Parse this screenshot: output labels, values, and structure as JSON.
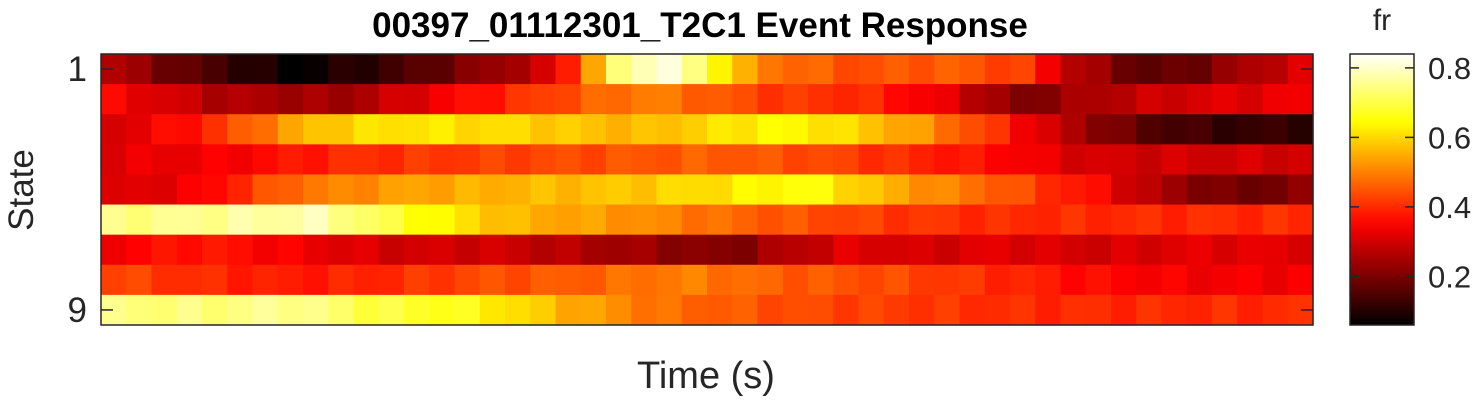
{
  "chart_data": {
    "type": "heatmap",
    "title": "00397_01112301_T2C1 Event Response",
    "xlabel": "Time (s)",
    "ylabel": "State",
    "y_tick_labels": [
      "1",
      "9"
    ],
    "x_tick_labels": [],
    "colorbar": {
      "label": "fr",
      "colormap": "hot",
      "clim": [
        0.06,
        0.84
      ],
      "ticks": [
        0.2,
        0.4,
        0.6,
        0.8
      ],
      "tick_labels": [
        "0.2",
        "0.4",
        "0.6",
        "0.8"
      ]
    },
    "rows": 9,
    "columns": 48,
    "row_keyframes": [
      [
        [
          0,
          0.28
        ],
        [
          0.06,
          0.18
        ],
        [
          0.16,
          0.06
        ],
        [
          0.25,
          0.14
        ],
        [
          0.33,
          0.24
        ],
        [
          0.37,
          0.3
        ],
        [
          0.4,
          0.48
        ],
        [
          0.42,
          0.7
        ],
        [
          0.46,
          0.84
        ],
        [
          0.5,
          0.7
        ],
        [
          0.54,
          0.5
        ],
        [
          0.62,
          0.44
        ],
        [
          0.7,
          0.46
        ],
        [
          0.76,
          0.42
        ],
        [
          0.8,
          0.28
        ],
        [
          0.86,
          0.16
        ],
        [
          0.9,
          0.18
        ],
        [
          0.95,
          0.26
        ],
        [
          1,
          0.32
        ]
      ],
      [
        [
          0,
          0.36
        ],
        [
          0.1,
          0.26
        ],
        [
          0.2,
          0.24
        ],
        [
          0.28,
          0.34
        ],
        [
          0.36,
          0.42
        ],
        [
          0.45,
          0.5
        ],
        [
          0.55,
          0.42
        ],
        [
          0.63,
          0.4
        ],
        [
          0.7,
          0.32
        ],
        [
          0.76,
          0.2
        ],
        [
          0.82,
          0.26
        ],
        [
          0.88,
          0.3
        ],
        [
          0.95,
          0.32
        ],
        [
          1,
          0.34
        ]
      ],
      [
        [
          0,
          0.3
        ],
        [
          0.08,
          0.38
        ],
        [
          0.18,
          0.58
        ],
        [
          0.25,
          0.62
        ],
        [
          0.34,
          0.6
        ],
        [
          0.44,
          0.56
        ],
        [
          0.5,
          0.6
        ],
        [
          0.55,
          0.64
        ],
        [
          0.6,
          0.62
        ],
        [
          0.68,
          0.52
        ],
        [
          0.74,
          0.4
        ],
        [
          0.8,
          0.26
        ],
        [
          0.86,
          0.16
        ],
        [
          0.92,
          0.12
        ],
        [
          1,
          0.12
        ]
      ],
      [
        [
          0,
          0.32
        ],
        [
          0.1,
          0.34
        ],
        [
          0.2,
          0.4
        ],
        [
          0.3,
          0.42
        ],
        [
          0.4,
          0.44
        ],
        [
          0.5,
          0.46
        ],
        [
          0.58,
          0.44
        ],
        [
          0.66,
          0.4
        ],
        [
          0.74,
          0.36
        ],
        [
          0.82,
          0.3
        ],
        [
          0.9,
          0.3
        ],
        [
          1,
          0.3
        ]
      ],
      [
        [
          0,
          0.3
        ],
        [
          0.08,
          0.34
        ],
        [
          0.16,
          0.48
        ],
        [
          0.26,
          0.54
        ],
        [
          0.34,
          0.56
        ],
        [
          0.44,
          0.58
        ],
        [
          0.52,
          0.62
        ],
        [
          0.58,
          0.66
        ],
        [
          0.66,
          0.54
        ],
        [
          0.74,
          0.46
        ],
        [
          0.82,
          0.36
        ],
        [
          0.88,
          0.24
        ],
        [
          0.94,
          0.18
        ],
        [
          1,
          0.22
        ]
      ],
      [
        [
          0,
          0.74
        ],
        [
          0.1,
          0.76
        ],
        [
          0.18,
          0.78
        ],
        [
          0.26,
          0.66
        ],
        [
          0.34,
          0.56
        ],
        [
          0.44,
          0.52
        ],
        [
          0.54,
          0.46
        ],
        [
          0.64,
          0.42
        ],
        [
          0.74,
          0.4
        ],
        [
          0.84,
          0.4
        ],
        [
          0.94,
          0.4
        ],
        [
          1,
          0.4
        ]
      ],
      [
        [
          0,
          0.34
        ],
        [
          0.08,
          0.38
        ],
        [
          0.16,
          0.34
        ],
        [
          0.24,
          0.3
        ],
        [
          0.32,
          0.3
        ],
        [
          0.4,
          0.26
        ],
        [
          0.44,
          0.24
        ],
        [
          0.48,
          0.22
        ],
        [
          0.52,
          0.2
        ],
        [
          0.56,
          0.26
        ],
        [
          0.62,
          0.32
        ],
        [
          0.68,
          0.3
        ],
        [
          0.74,
          0.32
        ],
        [
          0.82,
          0.3
        ],
        [
          0.9,
          0.32
        ],
        [
          1,
          0.32
        ]
      ],
      [
        [
          0,
          0.44
        ],
        [
          0.08,
          0.4
        ],
        [
          0.16,
          0.38
        ],
        [
          0.24,
          0.4
        ],
        [
          0.32,
          0.44
        ],
        [
          0.4,
          0.46
        ],
        [
          0.48,
          0.5
        ],
        [
          0.56,
          0.46
        ],
        [
          0.64,
          0.44
        ],
        [
          0.74,
          0.4
        ],
        [
          0.82,
          0.36
        ],
        [
          0.9,
          0.34
        ],
        [
          1,
          0.34
        ]
      ],
      [
        [
          0,
          0.74
        ],
        [
          0.1,
          0.74
        ],
        [
          0.16,
          0.76
        ],
        [
          0.22,
          0.7
        ],
        [
          0.3,
          0.66
        ],
        [
          0.38,
          0.56
        ],
        [
          0.46,
          0.48
        ],
        [
          0.56,
          0.44
        ],
        [
          0.66,
          0.42
        ],
        [
          0.76,
          0.4
        ],
        [
          0.86,
          0.4
        ],
        [
          1,
          0.4
        ]
      ]
    ]
  }
}
